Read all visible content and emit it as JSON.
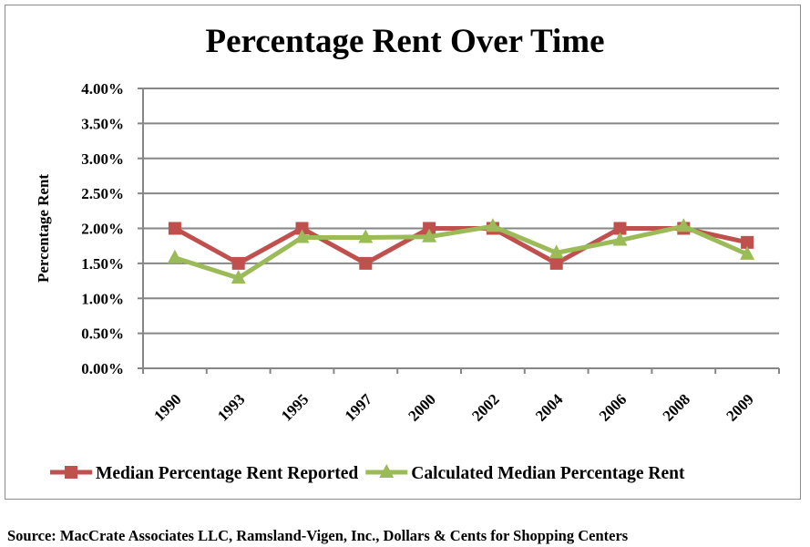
{
  "chart_data": {
    "type": "line",
    "title": "Percentage Rent Over Time",
    "xlabel": "",
    "ylabel": "Percentage Rent",
    "categories": [
      "1990",
      "1993",
      "1995",
      "1997",
      "2000",
      "2002",
      "2004",
      "2006",
      "2008",
      "2009"
    ],
    "ylim": [
      0,
      4
    ],
    "yticks": [
      "0.00%",
      "0.50%",
      "1.00%",
      "1.50%",
      "2.00%",
      "2.50%",
      "3.00%",
      "3.50%",
      "4.00%"
    ],
    "grid": true,
    "legend_position": "bottom",
    "series": [
      {
        "name": "Median Percentage Rent Reported",
        "color": "#c0504d",
        "marker": "square",
        "values": [
          2.0,
          1.5,
          2.0,
          1.5,
          2.0,
          2.0,
          1.5,
          2.0,
          2.0,
          1.8
        ]
      },
      {
        "name": "Calculated Median Percentage Rent",
        "color": "#9bbb59",
        "marker": "triangle",
        "values": [
          1.58,
          1.29,
          1.87,
          1.87,
          1.88,
          2.03,
          1.65,
          1.83,
          2.03,
          1.63
        ]
      }
    ]
  },
  "source": "Source: MacCrate Associates LLC, Ramsland-Vigen, Inc., Dollars & Cents for Shopping Centers"
}
